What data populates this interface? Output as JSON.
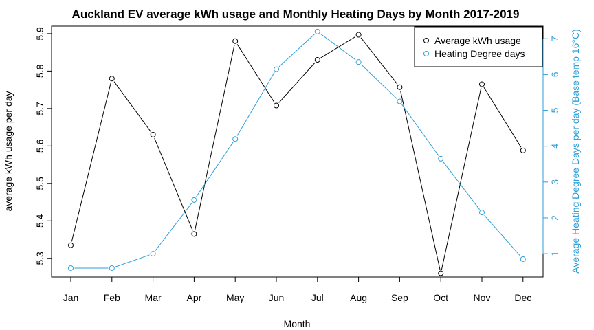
{
  "chart_data": {
    "type": "line",
    "title": "Auckland EV average kWh usage and Monthly Heating Days by Month 2017-2019",
    "xlabel": "Month",
    "ylabel": "average kWh usage per day",
    "y2label": "Average Heating Degree Days per day (Base temp 16°C)",
    "categories": [
      "Jan",
      "Feb",
      "Mar",
      "Apr",
      "May",
      "Jun",
      "Jul",
      "Aug",
      "Sep",
      "Oct",
      "Nov",
      "Dec"
    ],
    "ylim": [
      5.25,
      5.92
    ],
    "y2lim": [
      0.35,
      7.35
    ],
    "yticks": [
      "5.3",
      "5.4",
      "5.5",
      "5.6",
      "5.7",
      "5.8",
      "5.9"
    ],
    "y2ticks": [
      "1",
      "2",
      "3",
      "4",
      "5",
      "6",
      "7"
    ],
    "legend_position": "top-right",
    "series": [
      {
        "name": "Average kWh usage",
        "axis": "left",
        "color": "#000000",
        "values": [
          5.335,
          5.78,
          5.63,
          5.365,
          5.88,
          5.708,
          5.83,
          5.897,
          5.757,
          5.26,
          5.765,
          5.588
        ]
      },
      {
        "name": "Heating Degree days",
        "axis": "right",
        "color": "#2e9fd8",
        "values": [
          0.6,
          0.6,
          1.0,
          2.5,
          4.2,
          6.15,
          7.2,
          6.35,
          5.25,
          3.65,
          2.15,
          0.85
        ]
      }
    ]
  }
}
